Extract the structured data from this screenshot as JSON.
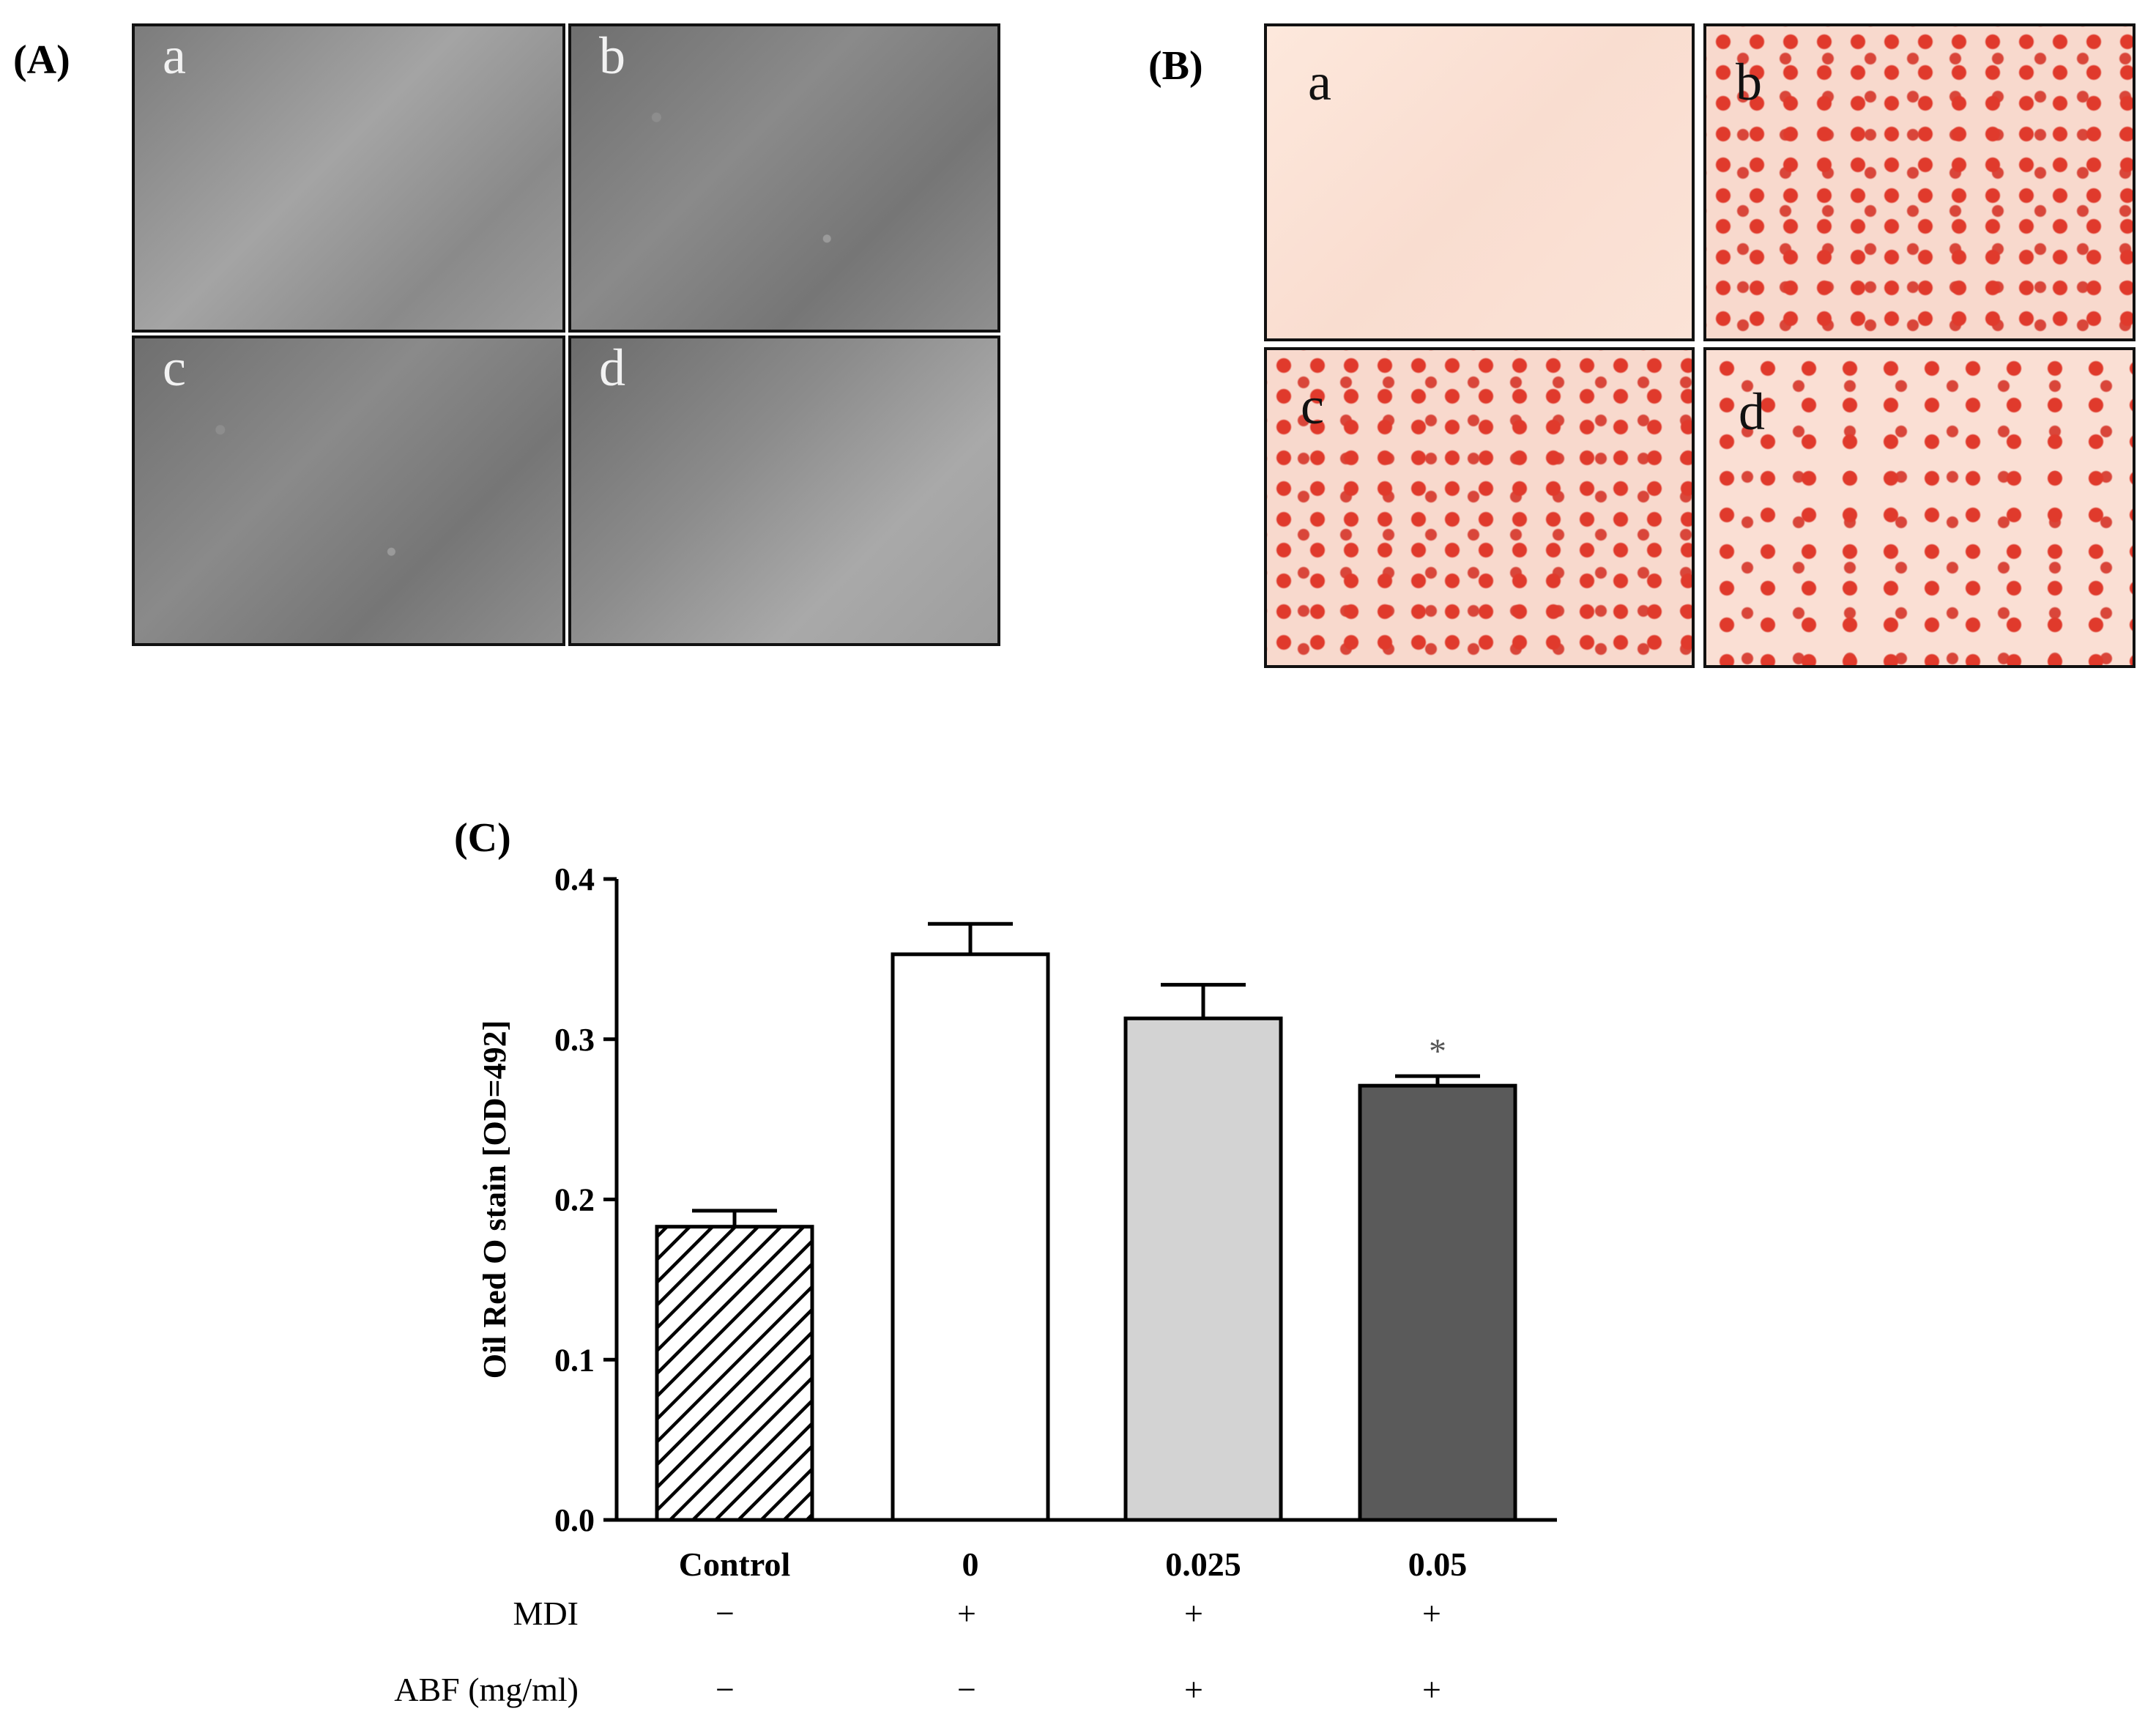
{
  "panelA": {
    "label": "(A)",
    "images": [
      {
        "letter": "a",
        "description": "phase-contrast micrograph"
      },
      {
        "letter": "b",
        "description": "phase-contrast micrograph"
      },
      {
        "letter": "c",
        "description": "phase-contrast micrograph"
      },
      {
        "letter": "d",
        "description": "phase-contrast micrograph"
      }
    ]
  },
  "panelB": {
    "label": "(B)",
    "images": [
      {
        "letter": "a",
        "description": "Oil Red O stained cells"
      },
      {
        "letter": "b",
        "description": "Oil Red O stained cells"
      },
      {
        "letter": "c",
        "description": "Oil Red O stained cells"
      },
      {
        "letter": "d",
        "description": "Oil Red O stained cells"
      }
    ]
  },
  "panelC": {
    "label": "(C)",
    "rows": [
      {
        "name": "MDI",
        "values": [
          "−",
          "+",
          "+",
          "+"
        ]
      },
      {
        "name": "ABF (mg/ml)",
        "values": [
          "−",
          "−",
          "+",
          "+"
        ]
      }
    ]
  },
  "chart_data": {
    "type": "bar",
    "ylabel": "Oil Red O stain [OD=492]",
    "xlabel": "",
    "ylim": [
      0,
      0.4
    ],
    "yticks": [
      "0.0",
      "0.1",
      "0.2",
      "0.3",
      "0.4"
    ],
    "categories": [
      "Control",
      "0",
      "0.025",
      "0.05"
    ],
    "values": [
      0.183,
      0.353,
      0.313,
      0.271
    ],
    "errors": [
      0.01,
      0.019,
      0.021,
      0.006
    ],
    "fills": [
      "hatched",
      "#ffffff",
      "#d3d3d3",
      "#5a5a5a"
    ],
    "annotations": [
      "",
      "",
      "",
      "*"
    ],
    "grid": false
  }
}
